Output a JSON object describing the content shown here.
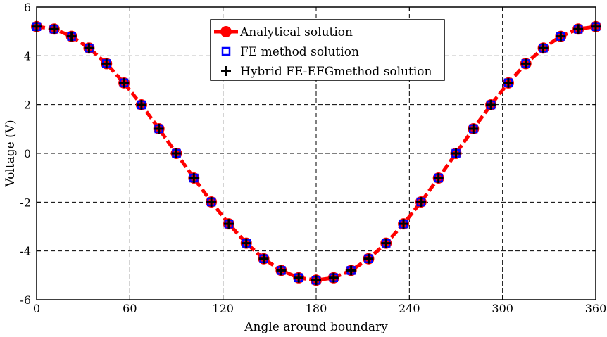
{
  "chart_data": {
    "type": "line",
    "title": "",
    "xlabel": "Angle around boundary",
    "ylabel": "Voltage (V)",
    "xlim": [
      0,
      360
    ],
    "ylim": [
      -6,
      6
    ],
    "xticks": [
      0,
      60,
      120,
      180,
      240,
      300,
      360
    ],
    "yticks": [
      -6,
      -4,
      -2,
      0,
      2,
      4,
      6
    ],
    "xtick_labels": [
      "0",
      "60",
      "120",
      "180",
      "240",
      "300",
      "360"
    ],
    "ytick_labels": [
      "-6",
      "-4",
      "-2",
      "0",
      "2",
      "4",
      "6"
    ],
    "grid": true,
    "legend_position": "top-center",
    "x": [
      0,
      11.25,
      22.5,
      33.75,
      45,
      56.25,
      67.5,
      78.75,
      90,
      101.25,
      112.5,
      123.75,
      135,
      146.25,
      157.5,
      168.75,
      180,
      191.25,
      202.5,
      213.75,
      225,
      236.25,
      247.5,
      258.75,
      270,
      281.25,
      292.5,
      303.75,
      315,
      326.25,
      337.5,
      348.75,
      360
    ],
    "series": [
      {
        "name": "Analytical solution",
        "color": "#ff0000",
        "style": "dashed-line-with-circle-markers",
        "values": [
          5.2,
          5.1,
          4.8,
          4.32,
          3.68,
          2.89,
          1.99,
          1.01,
          0,
          -1.01,
          -1.99,
          -2.89,
          -3.68,
          -4.32,
          -4.8,
          -5.1,
          -5.2,
          -5.1,
          -4.8,
          -4.32,
          -3.68,
          -2.89,
          -1.99,
          -1.01,
          0,
          1.01,
          1.99,
          2.89,
          3.68,
          4.32,
          4.8,
          5.1,
          5.2
        ]
      },
      {
        "name": "FE method solution",
        "color": "#0000ff",
        "style": "square-markers",
        "values": [
          5.2,
          5.1,
          4.8,
          4.32,
          3.68,
          2.89,
          1.99,
          1.01,
          0,
          -1.01,
          -1.99,
          -2.89,
          -3.68,
          -4.32,
          -4.8,
          -5.1,
          -5.2,
          -5.1,
          -4.8,
          -4.32,
          -3.68,
          -2.89,
          -1.99,
          -1.01,
          0,
          1.01,
          1.99,
          2.89,
          3.68,
          4.32,
          4.8,
          5.1,
          5.2
        ]
      },
      {
        "name": "Hybrid FE-EFGmethod solution",
        "color": "#000000",
        "style": "plus-markers",
        "values": [
          5.2,
          5.1,
          4.8,
          4.32,
          3.68,
          2.89,
          1.99,
          1.01,
          0,
          -1.01,
          -1.99,
          -2.89,
          -3.68,
          -4.32,
          -4.8,
          -5.1,
          -5.2,
          -5.1,
          -4.8,
          -4.32,
          -3.68,
          -2.89,
          -1.99,
          -1.01,
          0,
          1.01,
          1.99,
          2.89,
          3.68,
          4.32,
          4.8,
          5.1,
          5.2
        ]
      }
    ]
  }
}
